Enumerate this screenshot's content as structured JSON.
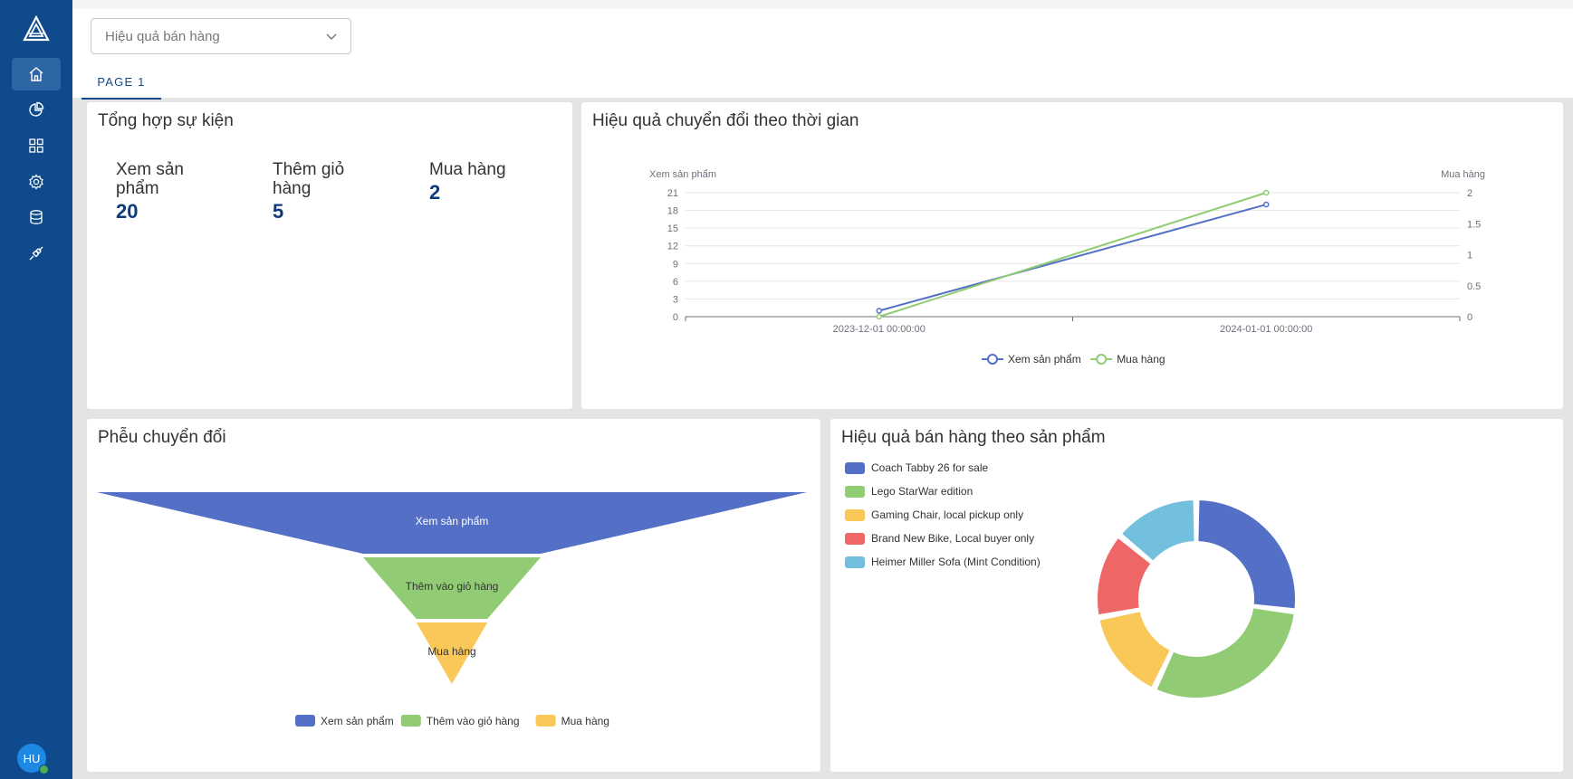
{
  "sidebar": {
    "logo": "triangle-logo",
    "items": [
      {
        "name": "home",
        "icon": "home-icon"
      },
      {
        "name": "charts",
        "icon": "pie-chart-icon"
      },
      {
        "name": "dashboards",
        "icon": "grid-icon"
      },
      {
        "name": "settings",
        "icon": "gear-icon"
      },
      {
        "name": "database",
        "icon": "database-icon"
      },
      {
        "name": "connections",
        "icon": "plug-icon"
      }
    ],
    "avatar_initials": "HU"
  },
  "header": {
    "dashboard_select": "Hiệu quả bán hàng",
    "tabs": [
      "PAGE 1"
    ]
  },
  "summary": {
    "title": "Tổng hợp sự kiện",
    "metrics": [
      {
        "label_line1": "Xem sản",
        "label_line2": "phẩm",
        "value": "20"
      },
      {
        "label_line1": "Thêm giỏ",
        "label_line2": "hàng",
        "value": "5"
      },
      {
        "label_line1": "Mua hàng",
        "label_line2": "",
        "value": "2"
      }
    ]
  },
  "line_chart": {
    "title": "Hiệu quả chuyển đổi theo thời gian",
    "left_axis_label": "Xem sản phẩm",
    "right_axis_label": "Mua hàng"
  },
  "funnel": {
    "title": "Phễu chuyển đổi"
  },
  "donut": {
    "title": "Hiệu quả bán hàng theo sản phẩm"
  },
  "colors": {
    "sidebar": "#0f4a8c",
    "blue": "#5470c6",
    "green": "#91cc75",
    "yellow": "#fac858",
    "red": "#ee6666",
    "cyan": "#73c0de"
  },
  "chart_data": [
    {
      "type": "line",
      "title": "Hiệu quả chuyển đổi theo thời gian",
      "x": [
        "2023-12-01 00:00:00",
        "2024-01-01 00:00:00"
      ],
      "y_left": {
        "label": "Xem sản phẩm",
        "ticks": [
          0,
          3,
          6,
          9,
          12,
          15,
          18,
          21
        ]
      },
      "y_right": {
        "label": "Mua hàng",
        "ticks": [
          "0",
          "0.5",
          "1",
          "1.5",
          "2"
        ]
      },
      "series": [
        {
          "name": "Xem sản phẩm",
          "axis": "left",
          "values": [
            1,
            19
          ],
          "color": "#5470c6"
        },
        {
          "name": "Mua hàng",
          "axis": "right",
          "values": [
            0,
            2
          ],
          "color": "#91cc75"
        }
      ],
      "legend": "bottom"
    },
    {
      "type": "funnel",
      "title": "Phễu chuyển đổi",
      "categories": [
        "Xem sản phẩm",
        "Thêm vào giỏ hàng",
        "Mua hàng"
      ],
      "values": [
        20,
        5,
        2
      ],
      "colors": [
        "#5470c6",
        "#91cc75",
        "#fac858"
      ],
      "legend": "bottom"
    },
    {
      "type": "pie",
      "title": "Hiệu quả bán hàng theo sản phẩm",
      "categories": [
        "Coach Tabby 26 for sale",
        "Lego StarWar edition",
        "Gaming Chair, local pickup only",
        "Brand New Bike, Local buyer only",
        "Heimer Miller Sofa (Mint Condition)"
      ],
      "values": [
        27,
        30,
        15,
        14,
        14
      ],
      "colors": [
        "#5470c6",
        "#91cc75",
        "#fac858",
        "#ee6666",
        "#73c0de"
      ],
      "legend": "top-left"
    }
  ]
}
